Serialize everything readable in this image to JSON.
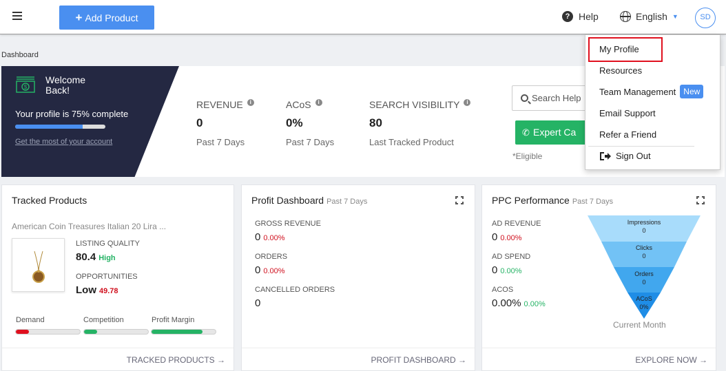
{
  "topbar": {
    "add_product_label": "Add Product",
    "help_label": "Help",
    "language": "English",
    "avatar_initials": "SD"
  },
  "breadcrumb": "Dashboard",
  "welcome": {
    "title": "Welcome Back!",
    "profile_text": "Your profile is 75% complete",
    "profile_progress": 0.75,
    "link_text": "Get the most of your account"
  },
  "metrics": [
    {
      "label": "REVENUE",
      "value": "0",
      "sub": "Past 7 Days"
    },
    {
      "label": "ACoS",
      "value": "0%",
      "sub": "Past 7 Days"
    },
    {
      "label": "SEARCH VISIBILITY",
      "value": "80",
      "sub": "Last Tracked Product"
    }
  ],
  "support": {
    "search_placeholder": "Search Help",
    "expert_label": "Expert Ca",
    "eligible": "*Eligible"
  },
  "tracked": {
    "title": "Tracked Products",
    "product_name": "American Coin Treasures Italian 20 Lira ...",
    "listing_quality_label": "LISTING QUALITY",
    "listing_quality_value": "80.4",
    "listing_quality_tag": "High",
    "opportunities_label": "OPPORTUNITIES",
    "opportunities_value": "Low",
    "opportunities_tag": "49.78",
    "bars": [
      {
        "label": "Demand",
        "level": 0.2,
        "color": "#e0101e"
      },
      {
        "label": "Competition",
        "level": 0.2,
        "color": "#25b365"
      },
      {
        "label": "Profit Margin",
        "level": 0.8,
        "color": "#25b365"
      }
    ],
    "footer": "TRACKED PRODUCTS →"
  },
  "profit": {
    "title": "Profit Dashboard",
    "subtitle": "Past 7 Days",
    "stats": [
      {
        "label": "GROSS REVENUE",
        "value": "0",
        "pct": "0.00%"
      },
      {
        "label": "ORDERS",
        "value": "0",
        "pct": "0.00%"
      },
      {
        "label": "CANCELLED ORDERS",
        "value": "0",
        "pct": ""
      }
    ],
    "footer": "PROFIT DASHBOARD →"
  },
  "ppc": {
    "title": "PPC Performance",
    "subtitle": "Past 7 Days",
    "stats": [
      {
        "label": "AD REVENUE",
        "value": "0",
        "pct": "0.00%"
      },
      {
        "label": "AD SPEND",
        "value": "0",
        "pct": "0.00%"
      },
      {
        "label": "ACOS",
        "value": "0.00%",
        "pct": "0.00%"
      }
    ],
    "funnel": [
      {
        "label": "Impressions",
        "value": "0"
      },
      {
        "label": "Clicks",
        "value": "0"
      },
      {
        "label": "Orders",
        "value": "0"
      },
      {
        "label": "ACoS",
        "value": "0%"
      }
    ],
    "funnel_caption": "Current Month",
    "footer": "EXPLORE NOW →"
  },
  "menu": {
    "items": [
      "My Profile",
      "Resources",
      "Team Management",
      "Email Support",
      "Refer a Friend",
      "Sign Out"
    ],
    "new_badge": "New"
  }
}
